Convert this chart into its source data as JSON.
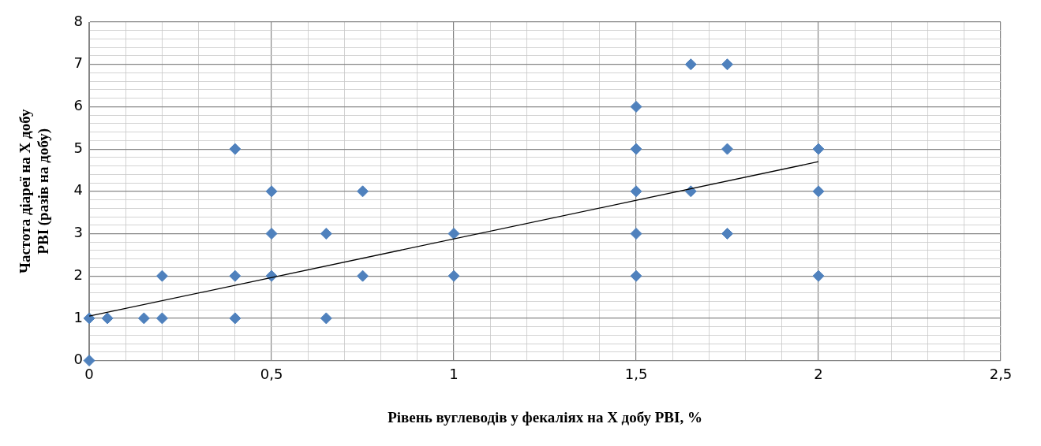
{
  "chart_data": {
    "type": "scatter",
    "xlabel": "Рівень вуглеводів у фекаліях на Х добу PBI, %",
    "ylabel": "Частота діареї на Х добу PBI (разів на добу)",
    "series": [
      {
        "type": "scatter",
        "color": "#4f81bd",
        "marker": "diamond",
        "x": [
          0,
          0,
          0.05,
          0.15,
          0.2,
          0.2,
          0.4,
          0.4,
          0.4,
          0.5,
          0.5,
          0.5,
          0.65,
          0.65,
          0.75,
          0.75,
          1,
          1,
          1.5,
          1.5,
          1.5,
          1.5,
          1.5,
          1.65,
          1.65,
          1.75,
          1.75,
          1.75,
          2,
          2,
          2
        ],
        "values": [
          0,
          1,
          1,
          1,
          1,
          2,
          1,
          2,
          5,
          2,
          3,
          4,
          1,
          3,
          2,
          4,
          2,
          3,
          2,
          3,
          4,
          5,
          6,
          4,
          7,
          3,
          5,
          7,
          2,
          4,
          5
        ]
      },
      {
        "type": "line",
        "color": "#000000",
        "marker": "none",
        "x": [
          0,
          2
        ],
        "values": [
          1.05,
          4.7
        ]
      }
    ],
    "xlim": [
      0,
      2.5
    ],
    "xticks": [
      0,
      {
        "value": 0.1,
        "label": null
      },
      {
        "value": 0.2,
        "label": null
      },
      {
        "value": 0.3,
        "label": null
      },
      {
        "value": 0.4,
        "label": null
      },
      {
        "value": 0.5,
        "label": "0,5"
      },
      {
        "value": 0.6,
        "label": null
      },
      {
        "value": 0.7,
        "label": null
      },
      {
        "value": 0.8,
        "label": null
      },
      {
        "value": 0.9,
        "label": null
      },
      1,
      {
        "value": 1.1,
        "label": null
      },
      {
        "value": 1.2,
        "label": null
      },
      {
        "value": 1.3,
        "label": null
      },
      {
        "value": 1.4,
        "label": null
      },
      {
        "value": 1.5,
        "label": "1,5"
      },
      {
        "value": 1.6,
        "label": null
      },
      {
        "value": 1.7,
        "label": null
      },
      {
        "value": 1.8,
        "label": null
      },
      {
        "value": 1.9,
        "label": null
      },
      2,
      {
        "value": 2.1,
        "label": null
      },
      {
        "value": 2.2,
        "label": null
      },
      {
        "value": 2.3,
        "label": null
      },
      {
        "value": 2.4,
        "label": null
      },
      {
        "value": 2.5,
        "label": "2,5"
      }
    ],
    "ylim": [
      0,
      8
    ],
    "yticks": [
      0,
      {
        "value": 0.2,
        "label": null
      },
      {
        "value": 0.4,
        "label": null
      },
      {
        "value": 0.6,
        "label": null
      },
      {
        "value": 0.8,
        "label": null
      },
      1,
      {
        "value": 1.2,
        "label": null
      },
      {
        "value": 1.4,
        "label": null
      },
      {
        "value": 1.6,
        "label": null
      },
      {
        "value": 1.8,
        "label": null
      },
      2,
      {
        "value": 2.2,
        "label": null
      },
      {
        "value": 2.4,
        "label": null
      },
      {
        "value": 2.6,
        "label": null
      },
      {
        "value": 2.8,
        "label": null
      },
      3,
      {
        "value": 3.2,
        "label": null
      },
      {
        "value": 3.4,
        "label": null
      },
      {
        "value": 3.6,
        "label": null
      },
      {
        "value": 3.8,
        "label": null
      },
      4,
      {
        "value": 4.2,
        "label": null
      },
      {
        "value": 4.4,
        "label": null
      },
      {
        "value": 4.6,
        "label": null
      },
      {
        "value": 4.8,
        "label": null
      },
      5,
      {
        "value": 5.2,
        "label": null
      },
      {
        "value": 5.4,
        "label": null
      },
      {
        "value": 5.6,
        "label": null
      },
      {
        "value": 5.8,
        "label": null
      },
      6,
      {
        "value": 6.2,
        "label": null
      },
      {
        "value": 6.4,
        "label": null
      },
      {
        "value": 6.6,
        "label": null
      },
      {
        "value": 6.8,
        "label": null
      },
      7,
      {
        "value": 7.2,
        "label": null
      },
      {
        "value": 7.4,
        "label": null
      },
      {
        "value": 7.6,
        "label": null
      },
      {
        "value": 7.8,
        "label": null
      },
      8
    ],
    "grid": true,
    "legend": false
  }
}
